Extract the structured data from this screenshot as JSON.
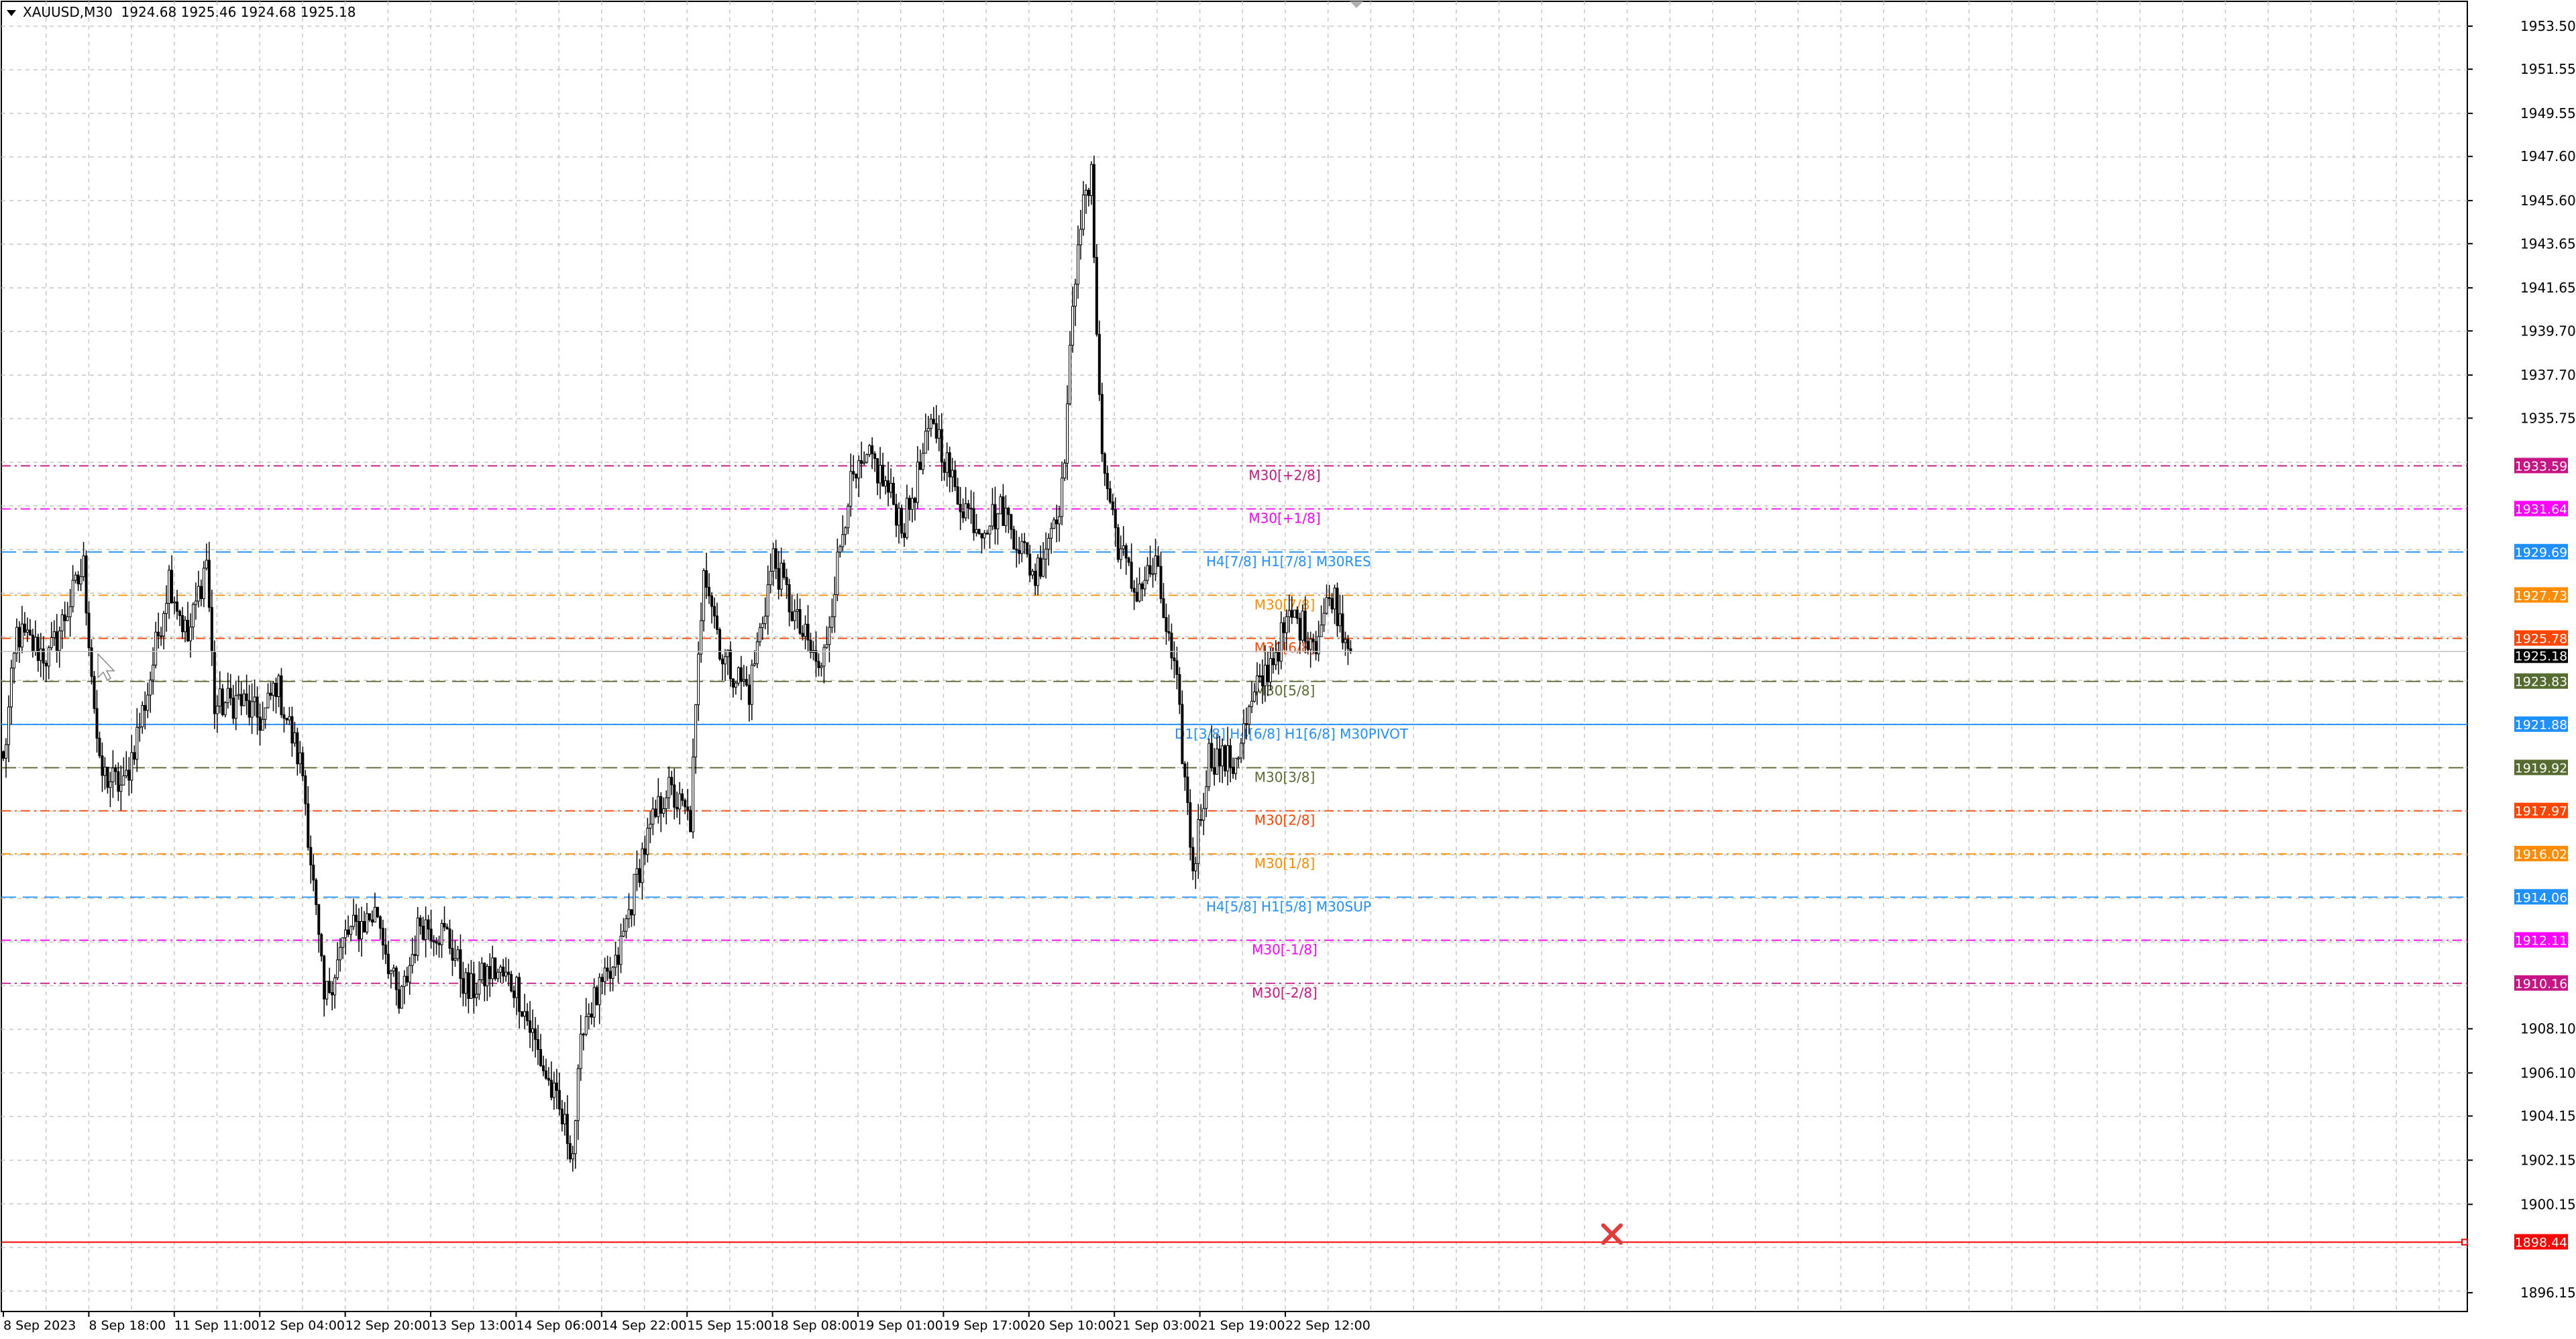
{
  "header": {
    "symbol": "XAUUSD,M30",
    "ohlc": "1924.68 1925.46 1924.68 1925.18"
  },
  "chart_data": {
    "type": "candlestick",
    "symbol": "XAUUSD",
    "timeframe": "M30",
    "ylim": [
      1896.15,
      1953.5
    ],
    "grid": true,
    "price_ticks": [
      "1953.50",
      "1951.55",
      "1949.55",
      "1947.60",
      "1945.60",
      "1943.65",
      "1941.65",
      "1939.70",
      "1937.70",
      "1935.75",
      "1908.10",
      "1906.10",
      "1904.15",
      "1902.15",
      "1900.15",
      "1896.15"
    ],
    "time_labels": [
      "8 Sep 2023",
      "8 Sep 18:00",
      "11 Sep 11:00",
      "12 Sep 04:00",
      "12 Sep 20:00",
      "13 Sep 13:00",
      "14 Sep 06:00",
      "14 Sep 22:00",
      "15 Sep 15:00",
      "18 Sep 08:00",
      "19 Sep 01:00",
      "19 Sep 17:00",
      "20 Sep 10:00",
      "21 Sep 03:00",
      "21 Sep 19:00",
      "22 Sep 12:00"
    ],
    "bars_per_time_label": 32,
    "close_waypoints": [
      [
        0,
        1920.1
      ],
      [
        5,
        1926.0
      ],
      [
        17,
        1924.9
      ],
      [
        30,
        1929.0
      ],
      [
        36,
        1919.7
      ],
      [
        45,
        1919.0
      ],
      [
        54,
        1923.4
      ],
      [
        62,
        1928.6
      ],
      [
        69,
        1925.7
      ],
      [
        76,
        1929.4
      ],
      [
        79,
        1922.7
      ],
      [
        88,
        1923.0
      ],
      [
        97,
        1922.0
      ],
      [
        102,
        1923.8
      ],
      [
        112,
        1919.7
      ],
      [
        120,
        1909.3
      ],
      [
        128,
        1912.3
      ],
      [
        140,
        1913.4
      ],
      [
        148,
        1909.0
      ],
      [
        156,
        1913.0
      ],
      [
        166,
        1912.3
      ],
      [
        174,
        1909.7
      ],
      [
        183,
        1910.8
      ],
      [
        192,
        1910.0
      ],
      [
        202,
        1906.3
      ],
      [
        213,
        1902.6
      ],
      [
        217,
        1908.6
      ],
      [
        229,
        1910.8
      ],
      [
        239,
        1916.0
      ],
      [
        248,
        1919.0
      ],
      [
        257,
        1917.5
      ],
      [
        262,
        1929.4
      ],
      [
        269,
        1924.9
      ],
      [
        279,
        1923.4
      ],
      [
        288,
        1929.4
      ],
      [
        297,
        1926.4
      ],
      [
        306,
        1924.2
      ],
      [
        316,
        1932.4
      ],
      [
        325,
        1933.9
      ],
      [
        337,
        1930.9
      ],
      [
        348,
        1935.7
      ],
      [
        356,
        1932.4
      ],
      [
        365,
        1930.9
      ],
      [
        374,
        1931.6
      ],
      [
        386,
        1928.6
      ],
      [
        396,
        1932.4
      ],
      [
        402,
        1944.3
      ],
      [
        407,
        1946.5
      ],
      [
        411,
        1933.9
      ],
      [
        417,
        1930.1
      ],
      [
        423,
        1927.9
      ],
      [
        431,
        1929.0
      ],
      [
        439,
        1923.4
      ],
      [
        445,
        1915.3
      ],
      [
        451,
        1920.5
      ],
      [
        460,
        1920.1
      ],
      [
        469,
        1923.4
      ],
      [
        482,
        1926.8
      ],
      [
        491,
        1925.7
      ],
      [
        497,
        1927.9
      ],
      [
        504,
        1925.18
      ]
    ],
    "current_price": "1925.18",
    "levels": [
      {
        "price": "1933.59",
        "label": "M30[+2/8]",
        "color": "#C71585",
        "style": "dashdot"
      },
      {
        "price": "1931.64",
        "label": "M30[+1/8]",
        "color": "#FF00FF",
        "style": "dashdot"
      },
      {
        "price": "1929.69",
        "label": "H4[7/8] H1[7/8] M30RES",
        "color": "#1E90FF",
        "style": "dash"
      },
      {
        "price": "1927.73",
        "label": "M30[7/8]",
        "color": "#FF8C00",
        "style": "dashdot"
      },
      {
        "price": "1925.78",
        "label": "M30[6/8]",
        "color": "#FF4500",
        "style": "dashdot"
      },
      {
        "price": "1923.83",
        "label": "M30[5/8]",
        "color": "#556B2F",
        "style": "dash"
      },
      {
        "price": "1921.88",
        "label": "D1[3/8] H4[6/8] H1[6/8] M30PIVOT",
        "color": "#1E90FF",
        "style": "solid"
      },
      {
        "price": "1919.92",
        "label": "M30[3/8]",
        "color": "#556B2F",
        "style": "dash"
      },
      {
        "price": "1917.97",
        "label": "M30[2/8]",
        "color": "#FF4500",
        "style": "dashdot"
      },
      {
        "price": "1916.02",
        "label": "M30[1/8]",
        "color": "#FF8C00",
        "style": "dashdot"
      },
      {
        "price": "1914.06",
        "label": "H4[5/8] H1[5/8] M30SUP",
        "color": "#1E90FF",
        "style": "dash"
      },
      {
        "price": "1912.11",
        "label": "M30[-1/8]",
        "color": "#FF00FF",
        "style": "dashdot"
      },
      {
        "price": "1910.16",
        "label": "M30[-2/8]",
        "color": "#C71585",
        "style": "dashdot"
      }
    ],
    "stop_line": {
      "price": "1898.44",
      "color": "#FF0000",
      "marker": "x-icon"
    }
  }
}
